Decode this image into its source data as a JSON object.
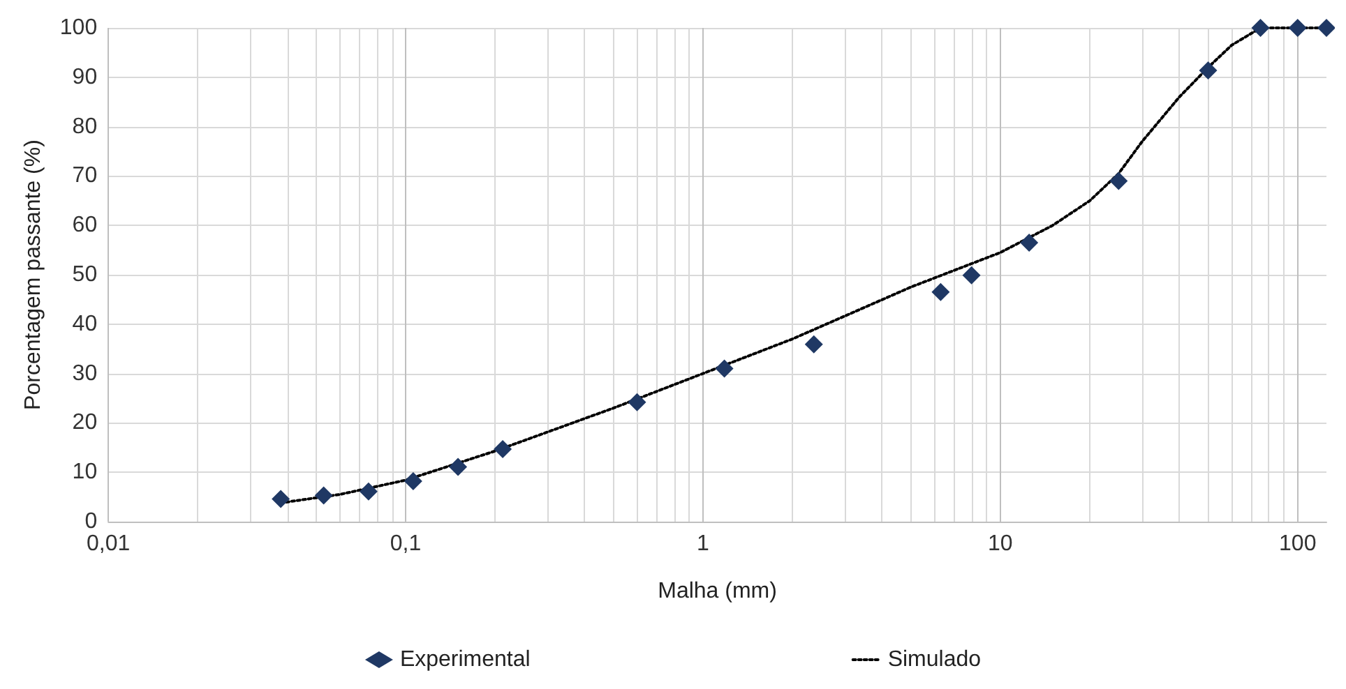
{
  "chart_data": {
    "type": "scatter",
    "xlabel": "Malha (mm)",
    "ylabel": "Porcentagem passante (%)",
    "log": "x",
    "grid": true,
    "legend": "bottom",
    "xlim": [
      0.01,
      125
    ],
    "xticks": [
      {
        "value": 0.01,
        "label": "0,01"
      },
      {
        "value": 0.1,
        "label": "0,1"
      },
      1,
      10,
      100
    ],
    "ylim": [
      0,
      100
    ],
    "yticks": [
      0,
      10,
      20,
      30,
      40,
      50,
      60,
      70,
      80,
      90,
      100
    ],
    "series": [
      {
        "name": "Experimental",
        "marker": "diamond",
        "color": "#1f3864",
        "x": [
          0.038,
          0.053,
          0.075,
          0.106,
          0.15,
          0.212,
          0.6,
          1.18,
          2.36,
          6.3,
          8,
          12.5,
          25,
          50,
          75,
          100,
          125
        ],
        "values": [
          4.6,
          5.3,
          6.1,
          8.2,
          11.1,
          14.7,
          24.2,
          31,
          35.9,
          46.5,
          49.9,
          56.5,
          69,
          91.4,
          100,
          100,
          100
        ]
      },
      {
        "name": "Simulado",
        "type": "line",
        "line_style": "dotted",
        "marker": "none",
        "color": "#000000",
        "x": [
          0.038,
          0.06,
          0.1,
          0.2,
          0.5,
          1,
          2,
          5,
          10,
          15,
          20,
          25,
          30,
          40,
          50,
          60,
          75,
          100,
          125
        ],
        "values": [
          3.8,
          5.5,
          8.4,
          14.3,
          23,
          30,
          37,
          47.5,
          54.5,
          60,
          65,
          70.5,
          77,
          86,
          92,
          96.5,
          100,
          100,
          100
        ]
      }
    ]
  }
}
